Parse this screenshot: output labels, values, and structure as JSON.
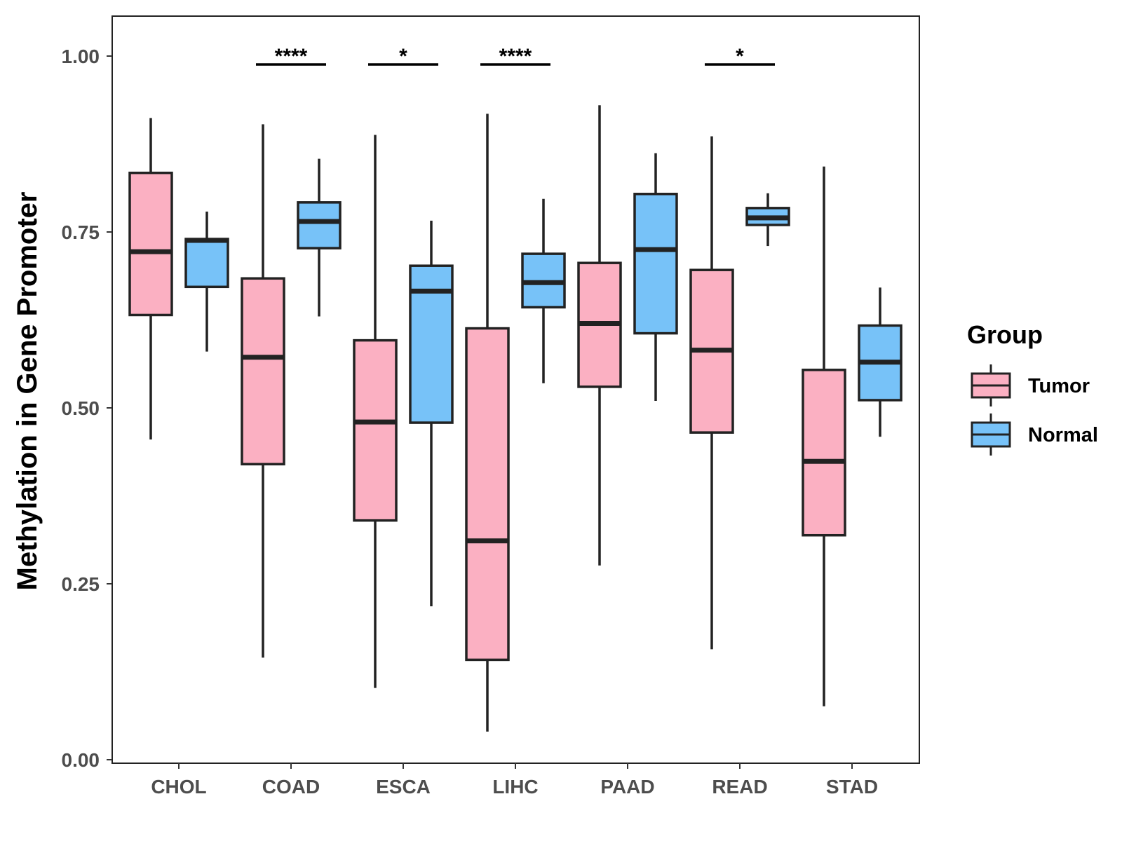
{
  "chart_data": {
    "type": "boxplot",
    "title": "",
    "xlabel": "",
    "ylabel": "Methylation in Gene Promoter",
    "ylim": [
      -0.01,
      1.05
    ],
    "yticks": [
      0.0,
      0.25,
      0.5,
      0.75,
      1.0
    ],
    "ytick_labels": [
      "0.00",
      "0.25",
      "0.50",
      "0.75",
      "1.00"
    ],
    "categories": [
      "CHOL",
      "COAD",
      "ESCA",
      "LIHC",
      "PAAD",
      "READ",
      "STAD"
    ],
    "legend": {
      "title": "Group",
      "position": "right",
      "entries": [
        {
          "name": "Tumor",
          "color": "#fbb0c2"
        },
        {
          "name": "Normal",
          "color": "#77c2f8"
        }
      ]
    },
    "series": [
      {
        "name": "Tumor",
        "color": "#fbb0c2",
        "boxes": [
          {
            "category": "CHOL",
            "min": 0.455,
            "q1": 0.632,
            "median": 0.722,
            "q3": 0.834,
            "max": 0.912
          },
          {
            "category": "COAD",
            "min": 0.145,
            "q1": 0.42,
            "median": 0.572,
            "q3": 0.684,
            "max": 0.903
          },
          {
            "category": "ESCA",
            "min": 0.102,
            "q1": 0.34,
            "median": 0.48,
            "q3": 0.596,
            "max": 0.888
          },
          {
            "category": "LIHC",
            "min": 0.04,
            "q1": 0.142,
            "median": 0.311,
            "q3": 0.613,
            "max": 0.918
          },
          {
            "category": "PAAD",
            "min": 0.276,
            "q1": 0.53,
            "median": 0.62,
            "q3": 0.706,
            "max": 0.93
          },
          {
            "category": "READ",
            "min": 0.157,
            "q1": 0.465,
            "median": 0.582,
            "q3": 0.696,
            "max": 0.886
          },
          {
            "category": "STAD",
            "min": 0.076,
            "q1": 0.319,
            "median": 0.424,
            "q3": 0.554,
            "max": 0.843
          }
        ]
      },
      {
        "name": "Normal",
        "color": "#77c2f8",
        "boxes": [
          {
            "category": "CHOL",
            "min": 0.58,
            "q1": 0.672,
            "median": 0.738,
            "q3": 0.74,
            "max": 0.779
          },
          {
            "category": "COAD",
            "min": 0.63,
            "q1": 0.727,
            "median": 0.765,
            "q3": 0.792,
            "max": 0.854
          },
          {
            "category": "ESCA",
            "min": 0.218,
            "q1": 0.479,
            "median": 0.666,
            "q3": 0.702,
            "max": 0.766
          },
          {
            "category": "LIHC",
            "min": 0.535,
            "q1": 0.643,
            "median": 0.678,
            "q3": 0.719,
            "max": 0.797
          },
          {
            "category": "PAAD",
            "min": 0.51,
            "q1": 0.606,
            "median": 0.725,
            "q3": 0.804,
            "max": 0.862
          },
          {
            "category": "READ",
            "min": 0.73,
            "q1": 0.76,
            "median": 0.77,
            "q3": 0.784,
            "max": 0.805
          },
          {
            "category": "STAD",
            "min": 0.459,
            "q1": 0.511,
            "median": 0.565,
            "q3": 0.617,
            "max": 0.671
          }
        ]
      }
    ],
    "significance": [
      {
        "category": "COAD",
        "label": "****",
        "y": 0.988
      },
      {
        "category": "ESCA",
        "label": "*",
        "y": 0.988
      },
      {
        "category": "LIHC",
        "label": "****",
        "y": 0.988
      },
      {
        "category": "READ",
        "label": "*",
        "y": 0.988
      }
    ]
  }
}
